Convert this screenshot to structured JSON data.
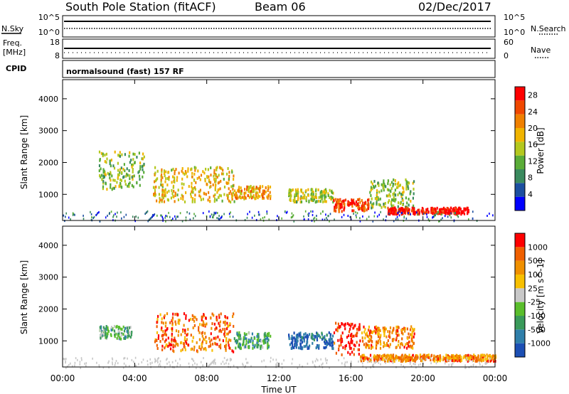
{
  "header": {
    "station": "South Pole Station (fitACF)",
    "beam": "Beam 06",
    "date": "02/Dec/2017"
  },
  "aux_labels": {
    "nsky": "N.Sky",
    "nsearch": "N.Search",
    "freq": "Freq.",
    "freq_unit": "[MHz]",
    "cpid": "CPID",
    "nave": "Nave",
    "mode": "normalsound (fast) 157 RF"
  },
  "aux_ticks": {
    "noise_left": [
      "10^5",
      "10^0"
    ],
    "noise_right": [
      "10^5",
      "10^0"
    ],
    "freq_left": [
      "18",
      "8"
    ],
    "nave_right": [
      "60",
      "0"
    ]
  },
  "x_axis": {
    "label": "Time UT",
    "ticks": [
      "00:00",
      "04:00",
      "08:00",
      "12:00",
      "16:00",
      "20:00",
      "00:00"
    ]
  },
  "chart_data": [
    {
      "type": "heatmap",
      "name": "power",
      "xlabel": "Time UT",
      "ylabel": "Slant Range [km]",
      "xlim": [
        0,
        24
      ],
      "ylim": [
        180,
        4600
      ],
      "yticks": [
        "1000",
        "2000",
        "3000",
        "4000"
      ],
      "colorbar": {
        "label": "Power [dB]",
        "ticks": [
          "4",
          "8",
          "12",
          "16",
          "20",
          "24",
          "28"
        ],
        "range": [
          0,
          30
        ],
        "colors": [
          "#0000ff",
          "#1c4fa0",
          "#3a8a5e",
          "#5aac38",
          "#b4c81e",
          "#f0b400",
          "#f08000",
          "#f04800",
          "#ff0000"
        ]
      },
      "features": [
        {
          "t0": 2.0,
          "t1": 4.5,
          "r0": 1200,
          "r1": 2400,
          "level": 0.45
        },
        {
          "t0": 5.0,
          "t1": 9.5,
          "r0": 800,
          "r1": 1900,
          "level": 0.6
        },
        {
          "t0": 9.5,
          "t1": 11.5,
          "r0": 900,
          "r1": 1300,
          "level": 0.65
        },
        {
          "t0": 12.5,
          "t1": 15.0,
          "r0": 800,
          "r1": 1200,
          "level": 0.5
        },
        {
          "t0": 15.0,
          "t1": 17.0,
          "r0": 500,
          "r1": 900,
          "level": 0.85
        },
        {
          "t0": 17.0,
          "t1": 19.5,
          "r0": 600,
          "r1": 1500,
          "level": 0.45
        },
        {
          "t0": 18.0,
          "t1": 22.5,
          "r0": 420,
          "r1": 620,
          "level": 0.95
        }
      ]
    },
    {
      "type": "heatmap",
      "name": "velocity",
      "xlabel": "Time UT",
      "ylabel": "Slant Range [km]",
      "xlim": [
        0,
        24
      ],
      "ylim": [
        180,
        4600
      ],
      "yticks": [
        "1000",
        "2000",
        "3000",
        "4000"
      ],
      "colorbar": {
        "label": "Velocity [m s^-1]",
        "ticks": [
          "1000",
          "500",
          "100",
          "25",
          "-25",
          "-100",
          "-500",
          "-1000"
        ],
        "colors": [
          "#1c4fb4",
          "#2f7faa",
          "#3a9a5a",
          "#5abe2c",
          "#c8c8c8",
          "#f8c000",
          "#f09000",
          "#f06000",
          "#ff0000"
        ]
      },
      "features": [
        {
          "t0": 2.0,
          "t1": 3.8,
          "r0": 1100,
          "r1": 1500,
          "level": 0.35
        },
        {
          "t0": 5.0,
          "t1": 9.5,
          "r0": 700,
          "r1": 1900,
          "level": 0.8
        },
        {
          "t0": 9.5,
          "t1": 11.5,
          "r0": 800,
          "r1": 1300,
          "level": 0.3
        },
        {
          "t0": 12.5,
          "t1": 15.0,
          "r0": 800,
          "r1": 1300,
          "level": 0.1
        },
        {
          "t0": 15.0,
          "t1": 16.5,
          "r0": 600,
          "r1": 1600,
          "level": 0.95
        },
        {
          "t0": 16.5,
          "t1": 19.5,
          "r0": 800,
          "r1": 1500,
          "level": 0.75
        },
        {
          "t0": 16.5,
          "t1": 24.0,
          "r0": 400,
          "r1": 600,
          "level": 0.75
        }
      ]
    }
  ]
}
